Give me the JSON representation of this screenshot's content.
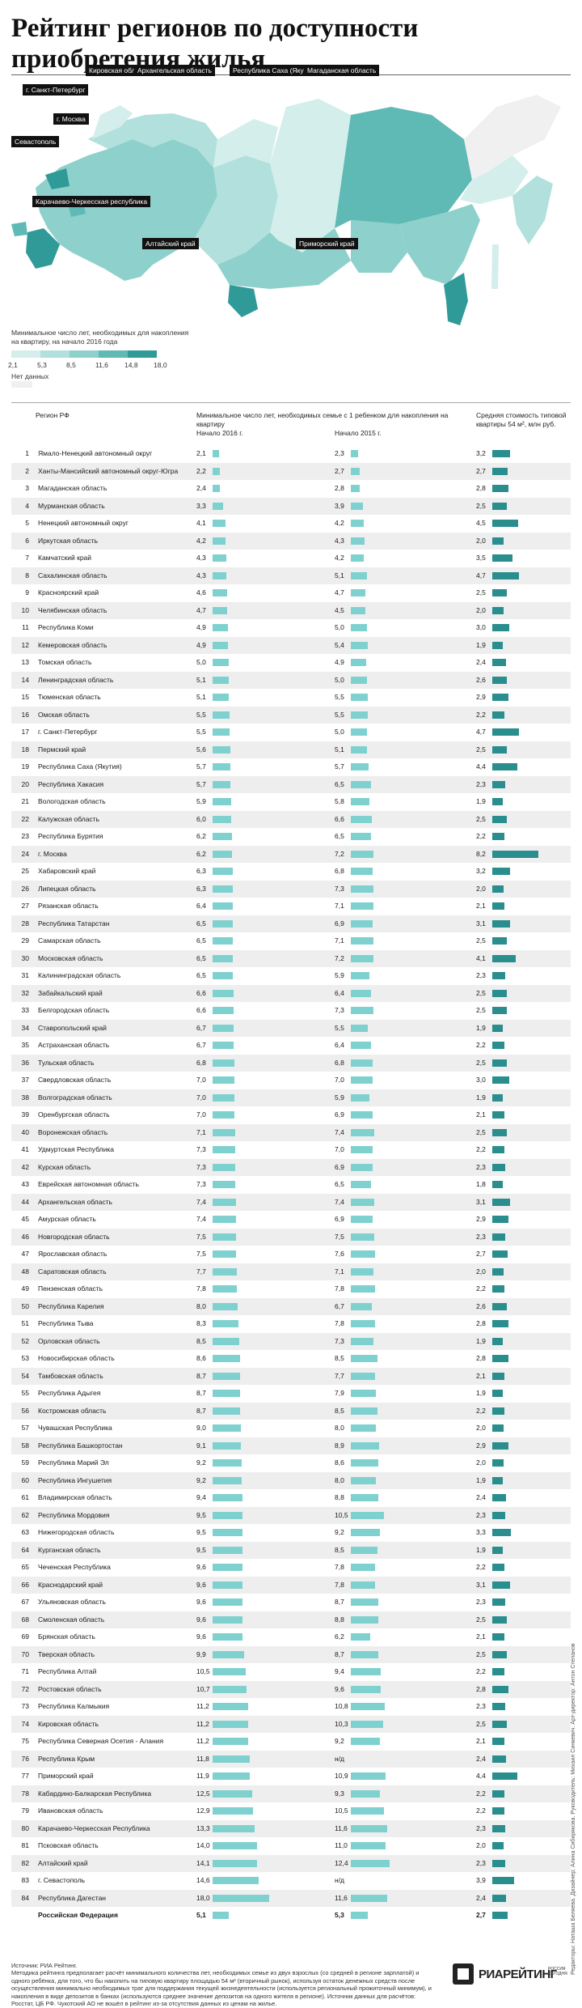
{
  "title": "Рейтинг регионов по доступности приобретения жилья",
  "map": {
    "labels": {
      "spb": "г. Санкт-Петербург",
      "kirov": "Кировская область",
      "arkh": "Архангельская область",
      "sakha": "Республика Саха (Якутия)",
      "magadan": "Магаданская область",
      "moscow": "г. Москва",
      "sevastopol": "Севастополь",
      "kchr": "Карачаево-Черкесская республика",
      "altai": "Алтайский край",
      "primorye": "Приморский край"
    },
    "legend_title": "Минимальное число лет, необходимых для накопления на квартиру, на начало 2016 года",
    "legend_ticks": [
      "2,1",
      "5,3",
      "8,5",
      "11,6",
      "14,8",
      "18,0"
    ],
    "legend_colors": [
      "#d4eeec",
      "#b2e0dc",
      "#8ed0cb",
      "#5fb9b5",
      "#2f9a98"
    ],
    "no_data_label": "Нет данных",
    "no_data_color": "#f0f0f0"
  },
  "table": {
    "col_region": "Регион РФ",
    "col_years": "Минимальное число лет, необходимых семье с 1 ребенком для накопления на квартиру",
    "col_2016": "Начало 2016 г.",
    "col_2015": "Начало 2015 г.",
    "col_cost": "Средняя стоимость типовой квартиры 54 м², млн руб."
  },
  "chart_data": {
    "type": "bar",
    "series": [
      {
        "name": "Начало 2016 г.",
        "key": "y2016"
      },
      {
        "name": "Начало 2015 г.",
        "key": "y2015"
      },
      {
        "name": "Средняя стоимость типовой квартиры 54 м², млн руб.",
        "key": "cost"
      }
    ],
    "rows": [
      {
        "rank": "1",
        "region": "Ямало-Ненецкий автономный округ",
        "y2016": "2,1",
        "y2015": "2,3",
        "cost": "3,2"
      },
      {
        "rank": "2",
        "region": "Ханты-Мансийский автономный округ-Югра",
        "y2016": "2,2",
        "y2015": "2,7",
        "cost": "2,7"
      },
      {
        "rank": "3",
        "region": "Магаданская область",
        "y2016": "2,4",
        "y2015": "2,8",
        "cost": "2,8"
      },
      {
        "rank": "4",
        "region": "Мурманская область",
        "y2016": "3,3",
        "y2015": "3,9",
        "cost": "2,5"
      },
      {
        "rank": "5",
        "region": "Ненецкий автономный округ",
        "y2016": "4,1",
        "y2015": "4,2",
        "cost": "4,5"
      },
      {
        "rank": "6",
        "region": "Иркутская область",
        "y2016": "4,2",
        "y2015": "4,3",
        "cost": "2,0"
      },
      {
        "rank": "7",
        "region": "Камчатский край",
        "y2016": "4,3",
        "y2015": "4,2",
        "cost": "3,5"
      },
      {
        "rank": "8",
        "region": "Сахалинская область",
        "y2016": "4,3",
        "y2015": "5,1",
        "cost": "4,7"
      },
      {
        "rank": "9",
        "region": "Красноярский край",
        "y2016": "4,6",
        "y2015": "4,7",
        "cost": "2,5"
      },
      {
        "rank": "10",
        "region": "Челябинская область",
        "y2016": "4,7",
        "y2015": "4,5",
        "cost": "2,0"
      },
      {
        "rank": "11",
        "region": "Республика Коми",
        "y2016": "4,9",
        "y2015": "5,0",
        "cost": "3,0"
      },
      {
        "rank": "12",
        "region": "Кемеровская область",
        "y2016": "4,9",
        "y2015": "5,4",
        "cost": "1,9"
      },
      {
        "rank": "13",
        "region": "Томская область",
        "y2016": "5,0",
        "y2015": "4,9",
        "cost": "2,4"
      },
      {
        "rank": "14",
        "region": "Ленинградская область",
        "y2016": "5,1",
        "y2015": "5,0",
        "cost": "2,6"
      },
      {
        "rank": "15",
        "region": "Тюменская область",
        "y2016": "5,1",
        "y2015": "5,5",
        "cost": "2,9"
      },
      {
        "rank": "16",
        "region": "Омская область",
        "y2016": "5,5",
        "y2015": "5,5",
        "cost": "2,2"
      },
      {
        "rank": "17",
        "region": "г. Санкт-Петербург",
        "y2016": "5,5",
        "y2015": "5,0",
        "cost": "4,7"
      },
      {
        "rank": "18",
        "region": "Пермский край",
        "y2016": "5,6",
        "y2015": "5,1",
        "cost": "2,5"
      },
      {
        "rank": "19",
        "region": "Республика Саха (Якутия)",
        "y2016": "5,7",
        "y2015": "5,7",
        "cost": "4,4"
      },
      {
        "rank": "20",
        "region": "Республика Хакасия",
        "y2016": "5,7",
        "y2015": "6,5",
        "cost": "2,3"
      },
      {
        "rank": "21",
        "region": "Вологодская область",
        "y2016": "5,9",
        "y2015": "5,8",
        "cost": "1,9"
      },
      {
        "rank": "22",
        "region": "Калужская область",
        "y2016": "6,0",
        "y2015": "6,6",
        "cost": "2,5"
      },
      {
        "rank": "23",
        "region": "Республика Бурятия",
        "y2016": "6,2",
        "y2015": "6,5",
        "cost": "2,2"
      },
      {
        "rank": "24",
        "region": "г. Москва",
        "y2016": "6,2",
        "y2015": "7,2",
        "cost": "8,2"
      },
      {
        "rank": "25",
        "region": "Хабаровский край",
        "y2016": "6,3",
        "y2015": "6,8",
        "cost": "3,2"
      },
      {
        "rank": "26",
        "region": "Липецкая область",
        "y2016": "6,3",
        "y2015": "7,3",
        "cost": "2,0"
      },
      {
        "rank": "27",
        "region": "Рязанская область",
        "y2016": "6,4",
        "y2015": "7,1",
        "cost": "2,1"
      },
      {
        "rank": "28",
        "region": "Республика Татарстан",
        "y2016": "6,5",
        "y2015": "6,9",
        "cost": "3,1"
      },
      {
        "rank": "29",
        "region": "Самарская область",
        "y2016": "6,5",
        "y2015": "7,1",
        "cost": "2,5"
      },
      {
        "rank": "30",
        "region": "Московская область",
        "y2016": "6,5",
        "y2015": "7,2",
        "cost": "4,1"
      },
      {
        "rank": "31",
        "region": "Калининградская область",
        "y2016": "6,5",
        "y2015": "5,9",
        "cost": "2,3"
      },
      {
        "rank": "32",
        "region": "Забайкальский край",
        "y2016": "6,6",
        "y2015": "6,4",
        "cost": "2,5"
      },
      {
        "rank": "33",
        "region": "Белгородская область",
        "y2016": "6,6",
        "y2015": "7,3",
        "cost": "2,5"
      },
      {
        "rank": "34",
        "region": "Ставропольский край",
        "y2016": "6,7",
        "y2015": "5,5",
        "cost": "1,9"
      },
      {
        "rank": "35",
        "region": "Астраханская область",
        "y2016": "6,7",
        "y2015": "6,4",
        "cost": "2,2"
      },
      {
        "rank": "36",
        "region": "Тульская область",
        "y2016": "6,8",
        "y2015": "6,8",
        "cost": "2,5"
      },
      {
        "rank": "37",
        "region": "Свердловская область",
        "y2016": "7,0",
        "y2015": "7,0",
        "cost": "3,0"
      },
      {
        "rank": "38",
        "region": "Волгоградская область",
        "y2016": "7,0",
        "y2015": "5,9",
        "cost": "1,9"
      },
      {
        "rank": "39",
        "region": "Оренбургская область",
        "y2016": "7,0",
        "y2015": "6,9",
        "cost": "2,1"
      },
      {
        "rank": "40",
        "region": "Воронежская область",
        "y2016": "7,1",
        "y2015": "7,4",
        "cost": "2,5"
      },
      {
        "rank": "41",
        "region": "Удмуртская Республика",
        "y2016": "7,3",
        "y2015": "7,0",
        "cost": "2,2"
      },
      {
        "rank": "42",
        "region": "Курская область",
        "y2016": "7,3",
        "y2015": "6,9",
        "cost": "2,3"
      },
      {
        "rank": "43",
        "region": "Еврейская автономная область",
        "y2016": "7,3",
        "y2015": "6,5",
        "cost": "1,8"
      },
      {
        "rank": "44",
        "region": "Архангельская область",
        "y2016": "7,4",
        "y2015": "7,4",
        "cost": "3,1"
      },
      {
        "rank": "45",
        "region": "Амурская область",
        "y2016": "7,4",
        "y2015": "6,9",
        "cost": "2,9"
      },
      {
        "rank": "46",
        "region": "Новгородская область",
        "y2016": "7,5",
        "y2015": "7,5",
        "cost": "2,3"
      },
      {
        "rank": "47",
        "region": "Ярославская область",
        "y2016": "7,5",
        "y2015": "7,6",
        "cost": "2,7"
      },
      {
        "rank": "48",
        "region": "Саратовская область",
        "y2016": "7,7",
        "y2015": "7,1",
        "cost": "2,0"
      },
      {
        "rank": "49",
        "region": "Пензенская область",
        "y2016": "7,8",
        "y2015": "7,8",
        "cost": "2,2"
      },
      {
        "rank": "50",
        "region": "Республика Карелия",
        "y2016": "8,0",
        "y2015": "6,7",
        "cost": "2,6"
      },
      {
        "rank": "51",
        "region": "Республика Тыва",
        "y2016": "8,3",
        "y2015": "7,8",
        "cost": "2,8"
      },
      {
        "rank": "52",
        "region": "Орловская область",
        "y2016": "8,5",
        "y2015": "7,3",
        "cost": "1,9"
      },
      {
        "rank": "53",
        "region": "Новосибирская область",
        "y2016": "8,6",
        "y2015": "8,5",
        "cost": "2,8"
      },
      {
        "rank": "54",
        "region": "Тамбовская область",
        "y2016": "8,7",
        "y2015": "7,7",
        "cost": "2,1"
      },
      {
        "rank": "55",
        "region": "Республика Адыгея",
        "y2016": "8,7",
        "y2015": "7,9",
        "cost": "1,9"
      },
      {
        "rank": "56",
        "region": "Костромская область",
        "y2016": "8,7",
        "y2015": "8,5",
        "cost": "2,2"
      },
      {
        "rank": "57",
        "region": "Чувашская Республика",
        "y2016": "9,0",
        "y2015": "8,0",
        "cost": "2,0"
      },
      {
        "rank": "58",
        "region": "Республика Башкортостан",
        "y2016": "9,1",
        "y2015": "8,9",
        "cost": "2,9"
      },
      {
        "rank": "59",
        "region": "Республика Марий Эл",
        "y2016": "9,2",
        "y2015": "8,6",
        "cost": "2,0"
      },
      {
        "rank": "60",
        "region": "Республика Ингушетия",
        "y2016": "9,2",
        "y2015": "8,0",
        "cost": "1,9"
      },
      {
        "rank": "61",
        "region": "Владимирская область",
        "y2016": "9,4",
        "y2015": "8,8",
        "cost": "2,4"
      },
      {
        "rank": "62",
        "region": "Республика Мордовия",
        "y2016": "9,5",
        "y2015": "10,5",
        "cost": "2,3"
      },
      {
        "rank": "63",
        "region": "Нижегородская область",
        "y2016": "9,5",
        "y2015": "9,2",
        "cost": "3,3"
      },
      {
        "rank": "64",
        "region": "Курганская область",
        "y2016": "9,5",
        "y2015": "8,5",
        "cost": "1,9"
      },
      {
        "rank": "65",
        "region": "Чеченская Республика",
        "y2016": "9,6",
        "y2015": "7,8",
        "cost": "2,2"
      },
      {
        "rank": "66",
        "region": "Краснодарский край",
        "y2016": "9,6",
        "y2015": "7,8",
        "cost": "3,1"
      },
      {
        "rank": "67",
        "region": "Ульяновская область",
        "y2016": "9,6",
        "y2015": "8,7",
        "cost": "2,3"
      },
      {
        "rank": "68",
        "region": "Смоленская область",
        "y2016": "9,6",
        "y2015": "8,8",
        "cost": "2,5"
      },
      {
        "rank": "69",
        "region": "Брянская область",
        "y2016": "9,6",
        "y2015": "6,2",
        "cost": "2,1"
      },
      {
        "rank": "70",
        "region": "Тверская область",
        "y2016": "9,9",
        "y2015": "8,7",
        "cost": "2,5"
      },
      {
        "rank": "71",
        "region": "Республика Алтай",
        "y2016": "10,5",
        "y2015": "9,4",
        "cost": "2,2"
      },
      {
        "rank": "72",
        "region": "Ростовская область",
        "y2016": "10,7",
        "y2015": "9,6",
        "cost": "2,8"
      },
      {
        "rank": "73",
        "region": "Республика Калмыкия",
        "y2016": "11,2",
        "y2015": "10,8",
        "cost": "2,3"
      },
      {
        "rank": "74",
        "region": "Кировская область",
        "y2016": "11,2",
        "y2015": "10,3",
        "cost": "2,5"
      },
      {
        "rank": "75",
        "region": "Республика Северная Осетия - Алания",
        "y2016": "11,2",
        "y2015": "9,2",
        "cost": "2,1"
      },
      {
        "rank": "76",
        "region": "Республика Крым",
        "y2016": "11,8",
        "y2015": "н/д",
        "cost": "2,4"
      },
      {
        "rank": "77",
        "region": "Приморский край",
        "y2016": "11,9",
        "y2015": "10,9",
        "cost": "4,4"
      },
      {
        "rank": "78",
        "region": "Кабардино-Балкарская Республика",
        "y2016": "12,5",
        "y2015": "9,3",
        "cost": "2,2"
      },
      {
        "rank": "79",
        "region": "Ивановская область",
        "y2016": "12,9",
        "y2015": "10,5",
        "cost": "2,2"
      },
      {
        "rank": "80",
        "region": "Карачаево-Черкесская Республика",
        "y2016": "13,3",
        "y2015": "11,6",
        "cost": "2,3"
      },
      {
        "rank": "81",
        "region": "Псковская область",
        "y2016": "14,0",
        "y2015": "11,0",
        "cost": "2,0"
      },
      {
        "rank": "82",
        "region": "Алтайский край",
        "y2016": "14,1",
        "y2015": "12,4",
        "cost": "2,3"
      },
      {
        "rank": "83",
        "region": "г. Севастополь",
        "y2016": "14,6",
        "y2015": "н/д",
        "cost": "3,9"
      },
      {
        "rank": "84",
        "region": "Республика Дагестан",
        "y2016": "18,0",
        "y2015": "11,6",
        "cost": "2,4"
      }
    ],
    "total": {
      "region": "Российская Федерация",
      "y2016": "5,1",
      "y2015": "5,3",
      "cost": "2,7"
    },
    "bar_color_years": "#7fd1d0",
    "bar_color_cost": "#2a8d8e"
  },
  "side_credit": "Редакторы: Наташа Беляева. Дизайнер: Алина Сибирякова. Руководитель: Михаил Синкевич. Арт-директор: Антон Степанов",
  "footer": {
    "sources": "Источник: РИА Рейтинг.",
    "method": "Методика рейтинга предполагает расчёт минимального количества лет, необходимых семье из двух взрослых (со средней в регионе зарплатой) и одного ребёнка, для того, что бы накопить на типовую квартиру площадью 54 м² (вторичный рынок), используя остаток денежных средств после осуществления минимально необходимых трат для поддержания текущей жизнедеятельности (используется региональный прожиточный минимум), и накопления в виде депозитов в банках (используются среднее значение депозитов на одного жителя в регионе). Источник данных для расчётов: Росстат, ЦБ РФ. Чукотский АО не вошёл в рейтинг из-за отсутствия данных из ценам на жилье."
  },
  "logo": {
    "text": "РИАРЕЙТИНГ",
    "sub": "РОССИЯ СЕГОДНЯ"
  }
}
